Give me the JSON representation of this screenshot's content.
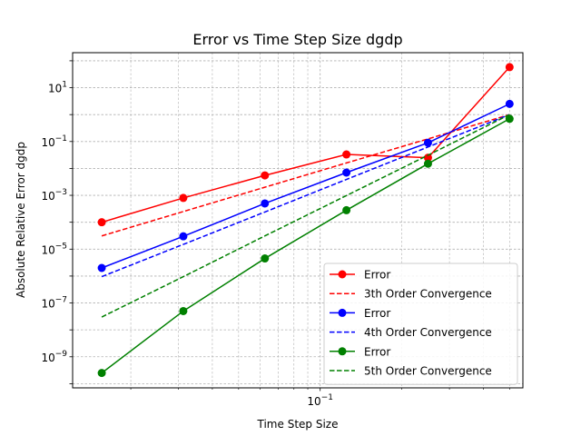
{
  "chart_data": {
    "type": "line",
    "title": "Error vs Time Step Size dgdp",
    "xlabel": "Time Step Size",
    "ylabel": "Absolute Relative Error dgdp",
    "xscale": "log",
    "yscale": "log",
    "xlim": [
      0.0122,
      0.56
    ],
    "ylim": [
      7e-11,
      200
    ],
    "x_ticks": [
      {
        "value": 0.1,
        "base": "10",
        "exp": "−1"
      }
    ],
    "y_ticks": [
      {
        "value": 1e-09,
        "base": "10",
        "exp": "−9"
      },
      {
        "value": 1e-07,
        "base": "10",
        "exp": "−7"
      },
      {
        "value": 1e-05,
        "base": "10",
        "exp": "−5"
      },
      {
        "value": 0.001,
        "base": "10",
        "exp": "−3"
      },
      {
        "value": 0.1,
        "base": "10",
        "exp": "−1"
      },
      {
        "value": 10,
        "base": "10",
        "exp": "1"
      }
    ],
    "grid": true,
    "legend_position": "lower-right",
    "x": [
      0.015625,
      0.03125,
      0.0625,
      0.125,
      0.25,
      0.5
    ],
    "series": [
      {
        "name": "Error",
        "color": "#ff0000",
        "style": "solid",
        "marker": "circle",
        "values": [
          0.0001,
          0.0008,
          0.0055,
          0.033,
          0.025,
          58
        ]
      },
      {
        "name": "3th Order Convergence",
        "color": "#ff0000",
        "style": "dashed",
        "marker": "none",
        "values": [
          3.1e-05,
          0.00025,
          0.002,
          0.016,
          0.125,
          1.0
        ]
      },
      {
        "name": "Error",
        "color": "#0000ff",
        "style": "solid",
        "marker": "circle",
        "values": [
          2e-06,
          3e-05,
          0.0005,
          0.007,
          0.09,
          2.5
        ]
      },
      {
        "name": "4th Order Convergence",
        "color": "#0000ff",
        "style": "dashed",
        "marker": "none",
        "values": [
          9.5e-07,
          1.5e-05,
          0.00024,
          0.0039,
          0.0625,
          1.0
        ]
      },
      {
        "name": "Error",
        "color": "#008000",
        "style": "solid",
        "marker": "circle",
        "values": [
          2.5e-10,
          5e-08,
          4.5e-06,
          0.00028,
          0.015,
          0.7
        ]
      },
      {
        "name": "5th Order Convergence",
        "color": "#008000",
        "style": "dashed",
        "marker": "none",
        "values": [
          3e-08,
          9.5e-07,
          3.1e-05,
          0.00098,
          0.031,
          1.0
        ]
      }
    ]
  }
}
